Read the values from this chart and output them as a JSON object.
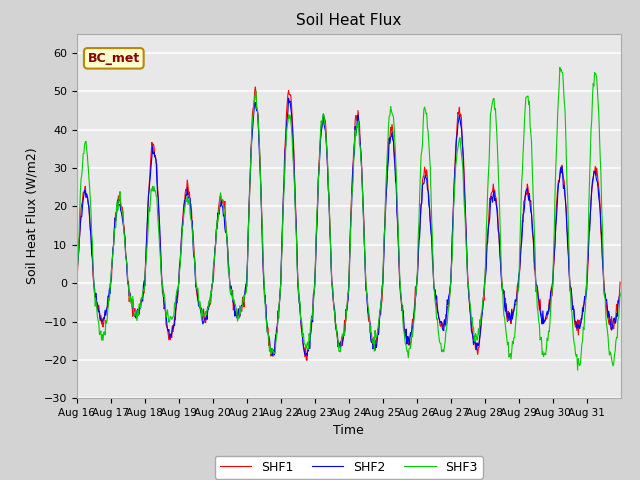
{
  "title": "Soil Heat Flux",
  "xlabel": "Time",
  "ylabel": "Soil Heat Flux (W/m2)",
  "ylim": [
    -30,
    65
  ],
  "yticks": [
    -30,
    -20,
    -10,
    0,
    10,
    20,
    30,
    40,
    50,
    60
  ],
  "line_colors": {
    "SHF1": "#ff0000",
    "SHF2": "#0000ff",
    "SHF3": "#00cc00"
  },
  "legend_labels": [
    "SHF1",
    "SHF2",
    "SHF3"
  ],
  "annotation_text": "BC_met",
  "annotation_color": "#8b0000",
  "annotation_bg": "#ffffcc",
  "annotation_edge": "#b8860b",
  "fig_bg": "#d3d3d3",
  "ax_bg": "#e8e8e8",
  "xticklabels": [
    "Aug 16",
    "Aug 17",
    "Aug 18",
    "Aug 19",
    "Aug 20",
    "Aug 21",
    "Aug 22",
    "Aug 23",
    "Aug 24",
    "Aug 25",
    "Aug 26",
    "Aug 27",
    "Aug 28",
    "Aug 29",
    "Aug 30",
    "Aug 31"
  ],
  "n_days": 16,
  "start_day": 16,
  "points_per_day": 48,
  "day_amplitudes_shf1": [
    25,
    22,
    36,
    25,
    22,
    49,
    50,
    44,
    44,
    41,
    29,
    45,
    25,
    25,
    30,
    30
  ],
  "day_amplitudes_shf3": [
    36,
    22,
    25,
    22,
    22,
    49,
    44,
    44,
    41,
    46,
    45,
    37,
    48,
    49,
    56,
    55
  ]
}
